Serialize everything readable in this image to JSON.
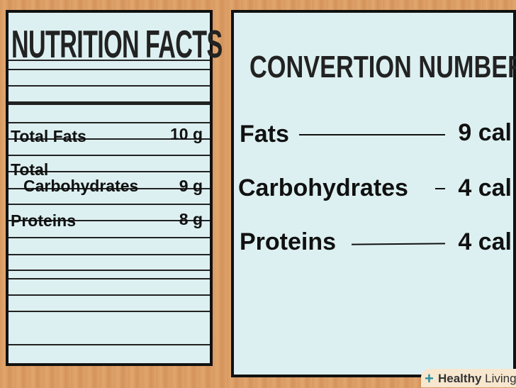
{
  "label": {
    "title": "NUTRITION FACTS",
    "rows": [
      {
        "name": "Total Fats",
        "value": "10 g"
      },
      {
        "name_line1": "Total",
        "name_line2": "Carbohydrates",
        "value": "9 g"
      },
      {
        "name": "Proteins",
        "value": "8 g"
      }
    ]
  },
  "conversion": {
    "title": "CONVERTION NUMBER",
    "rows": [
      {
        "name": "Fats",
        "value": "9 cal"
      },
      {
        "name": "Carbohydrates",
        "value": "4 cal"
      },
      {
        "name": "Proteins",
        "value": "4 cal"
      }
    ]
  },
  "watermark": {
    "brand_bold": "Healthy",
    "brand_light": "Living",
    "accent": "#2a9d8f"
  }
}
